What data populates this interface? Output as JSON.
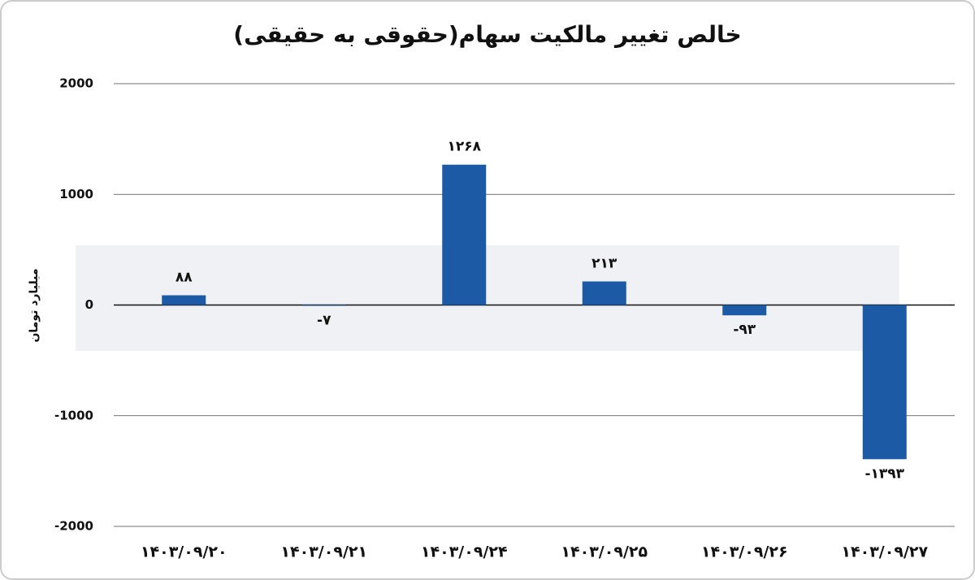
{
  "chart_data": {
    "type": "bar",
    "title": "خالص تغییر مالکیت سهام(حقوقی به حقیقی)",
    "y_label": "میلیارد تومان",
    "categories": [
      "۱۴۰۳/۰۹/۲۰",
      "۱۴۰۳/۰۹/۲۱",
      "۱۴۰۳/۰۹/۲۴",
      "۱۴۰۳/۰۹/۲۵",
      "۱۴۰۳/۰۹/۲۶",
      "۱۴۰۳/۰۹/۲۷"
    ],
    "values": [
      88,
      -7,
      1268,
      213,
      -93,
      -1393
    ],
    "value_labels": [
      "۸۸",
      "-۷",
      "۱۲۶۸",
      "۲۱۳",
      "-۹۳",
      "-۱۳۹۳"
    ],
    "color": "#1c5aa5",
    "ylim": [
      -2000,
      2000
    ],
    "yticks": [
      -2000,
      -1000,
      0,
      1000,
      2000
    ],
    "grid": true
  }
}
